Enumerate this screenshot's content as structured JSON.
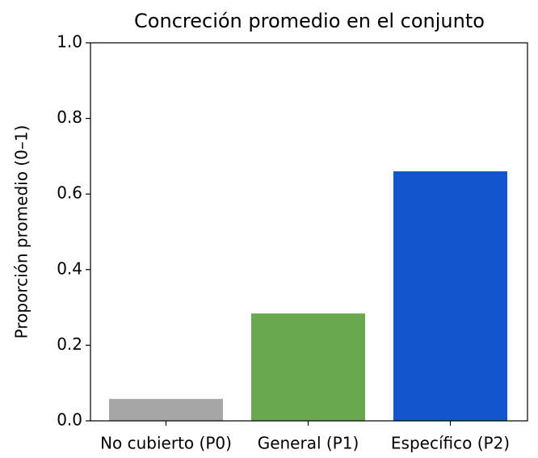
{
  "chart_data": {
    "type": "bar",
    "title": "Concreción promedio en el conjunto",
    "ylabel": "Proporción promedio (0–1)",
    "categories": [
      "No cubierto (P0)",
      "General (P1)",
      "Específico (P2)"
    ],
    "values": [
      0.058,
      0.284,
      0.66
    ],
    "colors": [
      "#a6a6a6",
      "#6aa84f",
      "#1155cc"
    ],
    "ylim": [
      0,
      1
    ],
    "yticks": [
      {
        "value": 0,
        "label": "0.0"
      },
      0.2,
      0.4,
      0.6,
      0.8,
      {
        "value": 1,
        "label": "1.0"
      }
    ]
  }
}
